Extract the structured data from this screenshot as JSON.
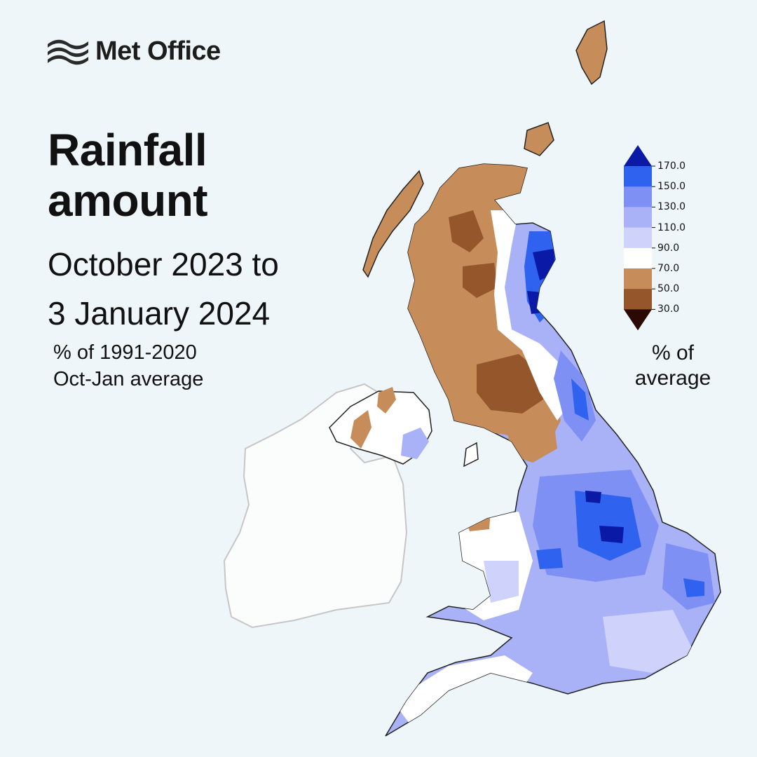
{
  "brand": {
    "name": "Met Office"
  },
  "title": {
    "line1": "Rainfall",
    "line2": "amount"
  },
  "period": {
    "line1": "October 2023 to",
    "line2": "3 January 2024"
  },
  "subtitle": {
    "line1": "% of 1991-2020",
    "line2": "Oct-Jan average"
  },
  "legend": {
    "title_line1": "% of",
    "title_line2": "average",
    "ticks": [
      "170.0",
      "150.0",
      "130.0",
      "110.0",
      "90.0",
      "70.0",
      "50.0",
      "30.0"
    ],
    "bins": [
      {
        "range": ">170",
        "color": "#0a1aa6"
      },
      {
        "range": "150-170",
        "color": "#2f63ef"
      },
      {
        "range": "130-150",
        "color": "#7f90f5"
      },
      {
        "range": "110-130",
        "color": "#a9b2f7"
      },
      {
        "range": "90-110",
        "color": "#cfd3fb"
      },
      {
        "range": "70-90",
        "color": "#ffffff"
      },
      {
        "range": "50-70",
        "color": "#c68d5a"
      },
      {
        "range": "30-50",
        "color": "#95562c"
      },
      {
        "range": "<30",
        "color": "#6a2e05"
      }
    ]
  },
  "map": {
    "region": "United Kingdom",
    "scotland_west_north": "70.0-90.0",
    "scotland_southern_uplands": "50.0-70.0",
    "north_east_scotland_coast": "150.0-170.0+",
    "northern_ireland": "mixed 70.0-110.0",
    "england_south_and_midlands": "110.0-150.0",
    "lincolnshire_east_midlands": "150.0-170.0+",
    "ireland_not_analysed_color": "#fbfcfc"
  }
}
